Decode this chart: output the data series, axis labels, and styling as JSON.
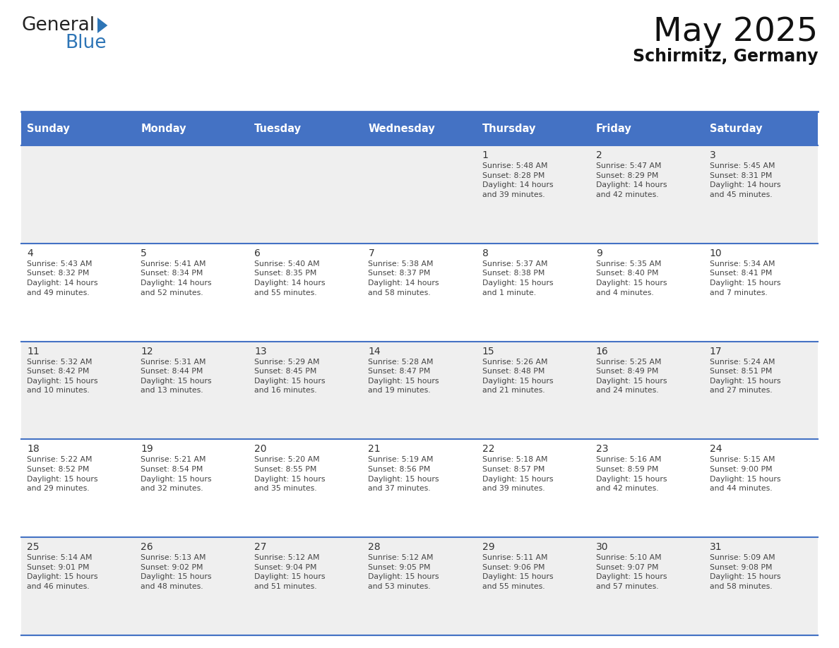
{
  "title": "May 2025",
  "subtitle": "Schirmitz, Germany",
  "days_of_week": [
    "Sunday",
    "Monday",
    "Tuesday",
    "Wednesday",
    "Thursday",
    "Friday",
    "Saturday"
  ],
  "header_bg": "#4472C4",
  "header_text_color": "#FFFFFF",
  "row_bgs": [
    "#EFEFEF",
    "#FFFFFF",
    "#EFEFEF",
    "#FFFFFF",
    "#EFEFEF"
  ],
  "cell_text_color": "#444444",
  "day_num_color": "#333333",
  "border_color": "#4472C4",
  "logo_general_color": "#222222",
  "logo_blue_color": "#2E75B6",
  "logo_triangle_color": "#2E75B6",
  "weeks": [
    {
      "days": [
        {
          "day": null,
          "info": null
        },
        {
          "day": null,
          "info": null
        },
        {
          "day": null,
          "info": null
        },
        {
          "day": null,
          "info": null
        },
        {
          "day": 1,
          "info": "Sunrise: 5:48 AM\nSunset: 8:28 PM\nDaylight: 14 hours\nand 39 minutes."
        },
        {
          "day": 2,
          "info": "Sunrise: 5:47 AM\nSunset: 8:29 PM\nDaylight: 14 hours\nand 42 minutes."
        },
        {
          "day": 3,
          "info": "Sunrise: 5:45 AM\nSunset: 8:31 PM\nDaylight: 14 hours\nand 45 minutes."
        }
      ]
    },
    {
      "days": [
        {
          "day": 4,
          "info": "Sunrise: 5:43 AM\nSunset: 8:32 PM\nDaylight: 14 hours\nand 49 minutes."
        },
        {
          "day": 5,
          "info": "Sunrise: 5:41 AM\nSunset: 8:34 PM\nDaylight: 14 hours\nand 52 minutes."
        },
        {
          "day": 6,
          "info": "Sunrise: 5:40 AM\nSunset: 8:35 PM\nDaylight: 14 hours\nand 55 minutes."
        },
        {
          "day": 7,
          "info": "Sunrise: 5:38 AM\nSunset: 8:37 PM\nDaylight: 14 hours\nand 58 minutes."
        },
        {
          "day": 8,
          "info": "Sunrise: 5:37 AM\nSunset: 8:38 PM\nDaylight: 15 hours\nand 1 minute."
        },
        {
          "day": 9,
          "info": "Sunrise: 5:35 AM\nSunset: 8:40 PM\nDaylight: 15 hours\nand 4 minutes."
        },
        {
          "day": 10,
          "info": "Sunrise: 5:34 AM\nSunset: 8:41 PM\nDaylight: 15 hours\nand 7 minutes."
        }
      ]
    },
    {
      "days": [
        {
          "day": 11,
          "info": "Sunrise: 5:32 AM\nSunset: 8:42 PM\nDaylight: 15 hours\nand 10 minutes."
        },
        {
          "day": 12,
          "info": "Sunrise: 5:31 AM\nSunset: 8:44 PM\nDaylight: 15 hours\nand 13 minutes."
        },
        {
          "day": 13,
          "info": "Sunrise: 5:29 AM\nSunset: 8:45 PM\nDaylight: 15 hours\nand 16 minutes."
        },
        {
          "day": 14,
          "info": "Sunrise: 5:28 AM\nSunset: 8:47 PM\nDaylight: 15 hours\nand 19 minutes."
        },
        {
          "day": 15,
          "info": "Sunrise: 5:26 AM\nSunset: 8:48 PM\nDaylight: 15 hours\nand 21 minutes."
        },
        {
          "day": 16,
          "info": "Sunrise: 5:25 AM\nSunset: 8:49 PM\nDaylight: 15 hours\nand 24 minutes."
        },
        {
          "day": 17,
          "info": "Sunrise: 5:24 AM\nSunset: 8:51 PM\nDaylight: 15 hours\nand 27 minutes."
        }
      ]
    },
    {
      "days": [
        {
          "day": 18,
          "info": "Sunrise: 5:22 AM\nSunset: 8:52 PM\nDaylight: 15 hours\nand 29 minutes."
        },
        {
          "day": 19,
          "info": "Sunrise: 5:21 AM\nSunset: 8:54 PM\nDaylight: 15 hours\nand 32 minutes."
        },
        {
          "day": 20,
          "info": "Sunrise: 5:20 AM\nSunset: 8:55 PM\nDaylight: 15 hours\nand 35 minutes."
        },
        {
          "day": 21,
          "info": "Sunrise: 5:19 AM\nSunset: 8:56 PM\nDaylight: 15 hours\nand 37 minutes."
        },
        {
          "day": 22,
          "info": "Sunrise: 5:18 AM\nSunset: 8:57 PM\nDaylight: 15 hours\nand 39 minutes."
        },
        {
          "day": 23,
          "info": "Sunrise: 5:16 AM\nSunset: 8:59 PM\nDaylight: 15 hours\nand 42 minutes."
        },
        {
          "day": 24,
          "info": "Sunrise: 5:15 AM\nSunset: 9:00 PM\nDaylight: 15 hours\nand 44 minutes."
        }
      ]
    },
    {
      "days": [
        {
          "day": 25,
          "info": "Sunrise: 5:14 AM\nSunset: 9:01 PM\nDaylight: 15 hours\nand 46 minutes."
        },
        {
          "day": 26,
          "info": "Sunrise: 5:13 AM\nSunset: 9:02 PM\nDaylight: 15 hours\nand 48 minutes."
        },
        {
          "day": 27,
          "info": "Sunrise: 5:12 AM\nSunset: 9:04 PM\nDaylight: 15 hours\nand 51 minutes."
        },
        {
          "day": 28,
          "info": "Sunrise: 5:12 AM\nSunset: 9:05 PM\nDaylight: 15 hours\nand 53 minutes."
        },
        {
          "day": 29,
          "info": "Sunrise: 5:11 AM\nSunset: 9:06 PM\nDaylight: 15 hours\nand 55 minutes."
        },
        {
          "day": 30,
          "info": "Sunrise: 5:10 AM\nSunset: 9:07 PM\nDaylight: 15 hours\nand 57 minutes."
        },
        {
          "day": 31,
          "info": "Sunrise: 5:09 AM\nSunset: 9:08 PM\nDaylight: 15 hours\nand 58 minutes."
        }
      ]
    }
  ]
}
